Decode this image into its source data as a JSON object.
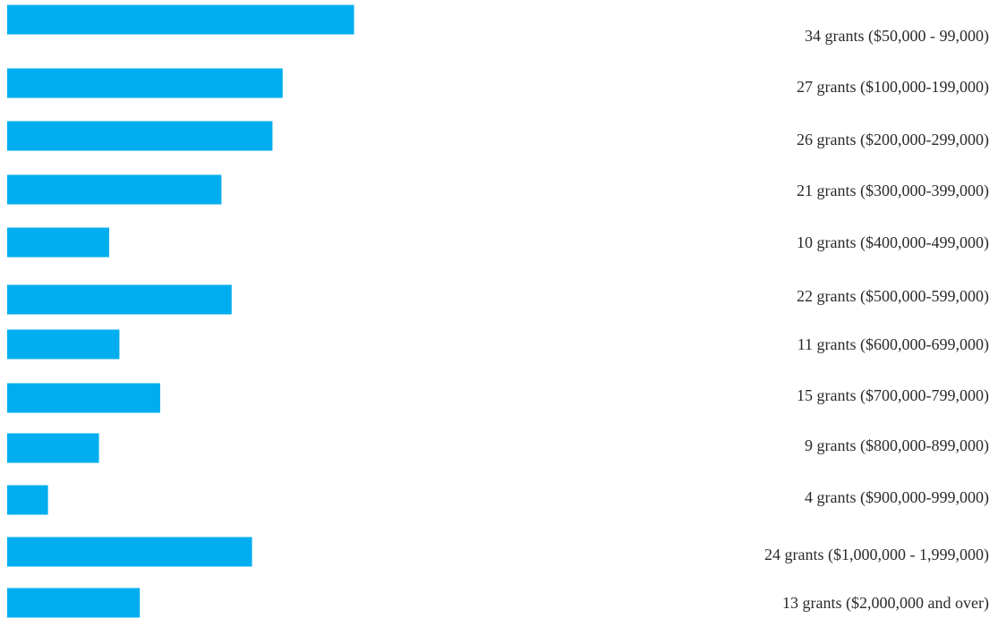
{
  "chart_data": {
    "type": "bar",
    "orientation": "horizontal",
    "title": "",
    "xlabel": "",
    "ylabel": "",
    "grid": false,
    "legend": "none",
    "bar_color": "#00AEEF",
    "categories": [
      "$50,000 - 99,000",
      "$100,000-199,000",
      "$200,000-299,000",
      "$300,000-399,000",
      "$400,000-499,000",
      "$500,000-599,000",
      "$600,000-699,000",
      "$700,000-799,000",
      "$800,000-899,000",
      "$900,000-999,000",
      "$1,000,000 - 1,999,000",
      "$2,000,000 and over"
    ],
    "values": [
      34,
      27,
      26,
      21,
      10,
      22,
      11,
      15,
      9,
      4,
      24,
      13
    ],
    "labels": [
      "34 grants ($50,000 - 99,000)",
      "27 grants ($100,000-199,000)",
      "26 grants ($200,000-299,000)",
      "21 grants ($300,000-399,000)",
      "10 grants ($400,000-499,000)",
      "22 grants ($500,000-599,000)",
      "11  grants ($600,000-699,000)",
      "15 grants ($700,000-799,000)",
      "9 grants ($800,000-899,000)",
      "4 grants ($900,000-999,000)",
      "24 grants ($1,000,000 - 1,999,000)",
      "13 grants ($2,000,000 and over)"
    ]
  }
}
